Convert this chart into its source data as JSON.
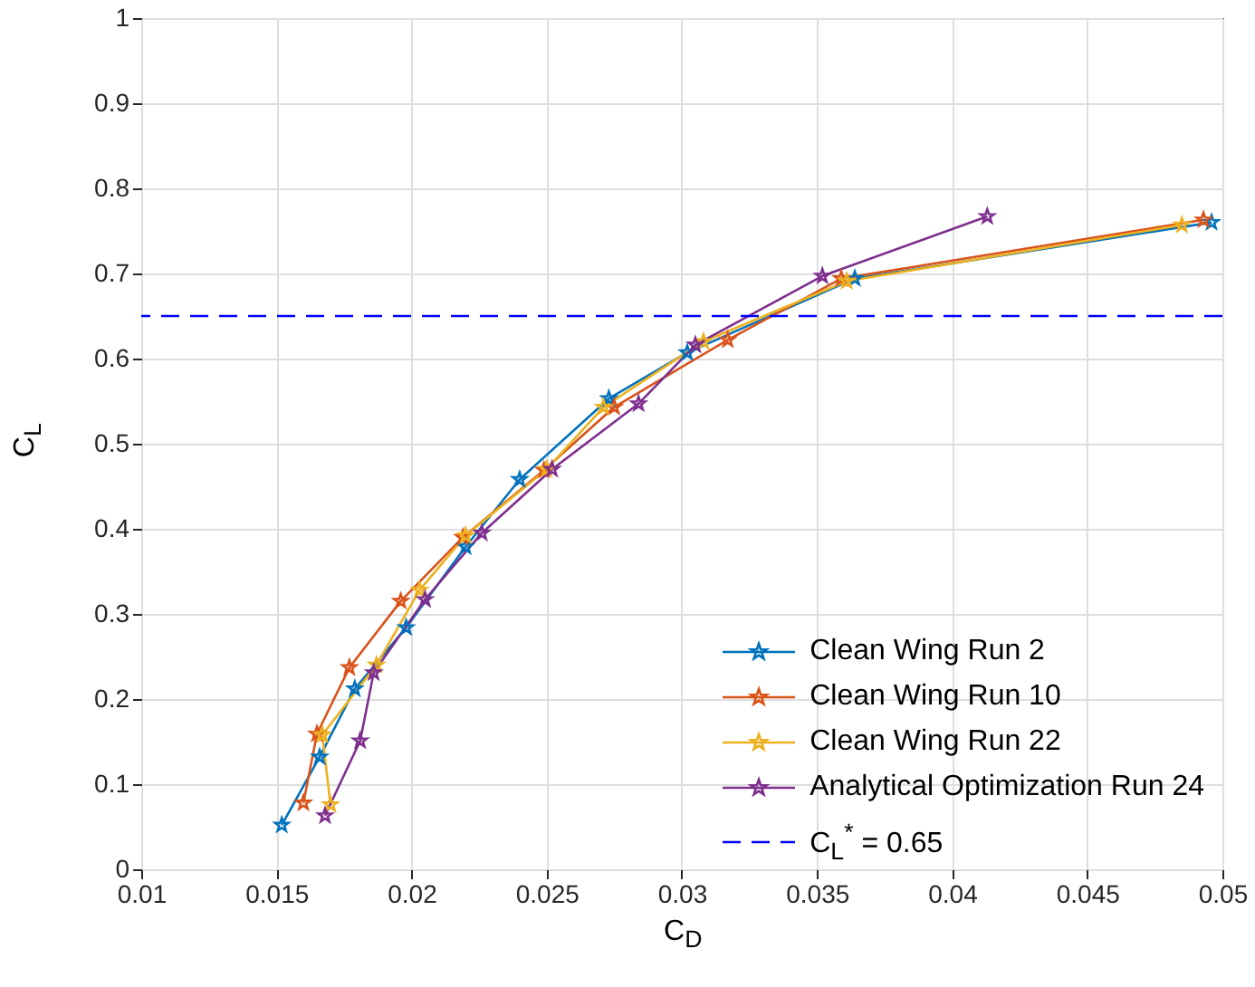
{
  "chart_data": {
    "type": "line",
    "xlabel": "C$_{D}$",
    "ylabel": "C$_{L}$",
    "xlim": [
      0.01,
      0.05
    ],
    "xticks": [
      0.01,
      0.015,
      0.02,
      0.025,
      0.03,
      0.035,
      0.04,
      0.045,
      0.05
    ],
    "ylim": [
      0,
      1
    ],
    "yticks": [
      0,
      0.1,
      0.2,
      0.3,
      0.4,
      0.5,
      0.6,
      0.7,
      0.8,
      0.9,
      1
    ],
    "grid": true,
    "legend": "bottom right",
    "marker": "star",
    "line_style": "solid",
    "series": [
      {
        "name": "Clean Wing Run 2",
        "color": "#0072bd",
        "x": [
          0.0152,
          0.0166,
          0.0179,
          0.0198,
          0.022,
          0.024,
          0.0273,
          0.0302,
          0.0364,
          0.0496
        ],
        "values": [
          0.052,
          0.132,
          0.212,
          0.284,
          0.379,
          0.458,
          0.553,
          0.607,
          0.694,
          0.76
        ]
      },
      {
        "name": "Clean Wing Run 10",
        "color": "#d95319",
        "x": [
          0.016,
          0.0165,
          0.0177,
          0.0196,
          0.0219,
          0.0249,
          0.0275,
          0.0317,
          0.0359,
          0.0493
        ],
        "values": [
          0.078,
          0.159,
          0.237,
          0.315,
          0.39,
          0.469,
          0.543,
          0.622,
          0.694,
          0.763
        ]
      },
      {
        "name": "Clean Wing Run 22",
        "color": "#edb120",
        "x": [
          0.017,
          0.0167,
          0.0187,
          0.0203,
          0.022,
          0.025,
          0.0271,
          0.0308,
          0.0361,
          0.0485
        ],
        "values": [
          0.076,
          0.158,
          0.24,
          0.328,
          0.392,
          0.47,
          0.543,
          0.62,
          0.691,
          0.757
        ]
      },
      {
        "name": "Analytical Optimization Run 24",
        "color": "#7e2f8e",
        "x": [
          0.0168,
          0.0181,
          0.0186,
          0.0205,
          0.0226,
          0.0252,
          0.0284,
          0.0305,
          0.0352,
          0.0413
        ],
        "values": [
          0.063,
          0.151,
          0.231,
          0.317,
          0.395,
          0.47,
          0.547,
          0.616,
          0.697,
          0.767
        ]
      }
    ],
    "ref_lines": [
      {
        "axis": "y",
        "value": 0.65,
        "label": "C$_{L}$$^{*}$ = 0.65",
        "color": "#0000ff",
        "line_style": "dashed"
      }
    ]
  }
}
